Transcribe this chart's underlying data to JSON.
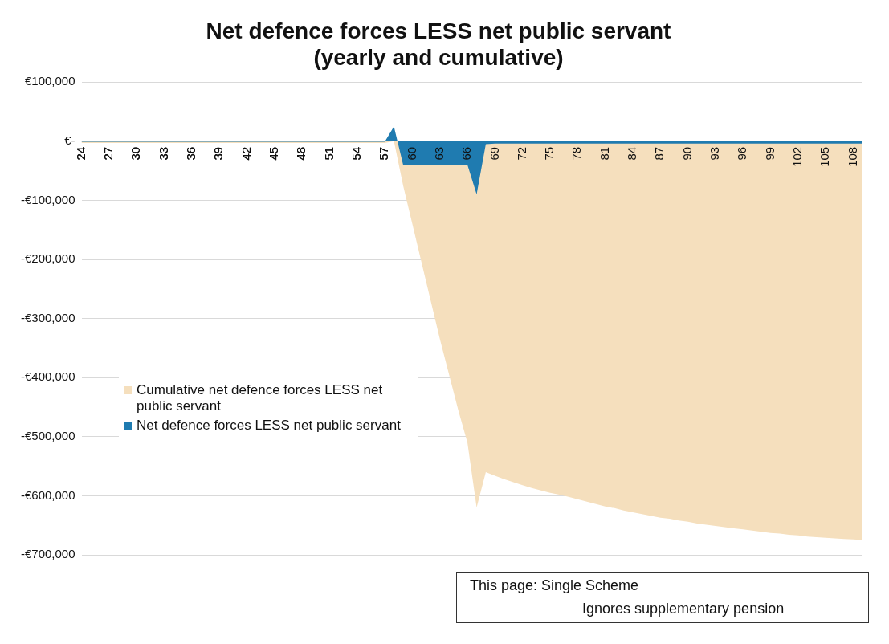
{
  "chart_data": {
    "type": "area",
    "title": "Net defence forces LESS net public servant",
    "subtitle": "(yearly and cumulative)",
    "categories": [
      "24",
      null,
      null,
      "27",
      null,
      null,
      "30",
      null,
      null,
      "33",
      null,
      null,
      "36",
      null,
      null,
      "39",
      null,
      null,
      "42",
      null,
      null,
      "45",
      null,
      null,
      "48",
      null,
      null,
      "51",
      null,
      null,
      "54",
      null,
      null,
      "57",
      null,
      null,
      "60",
      null,
      null,
      "63",
      null,
      null,
      "66",
      null,
      null,
      "69",
      null,
      null,
      "72",
      null,
      null,
      "75",
      null,
      null,
      "78",
      null,
      null,
      "81",
      null,
      null,
      "84",
      null,
      null,
      "87",
      null,
      null,
      "90",
      null,
      null,
      "93",
      null,
      null,
      "96",
      null,
      null,
      "99",
      null,
      null,
      "102",
      null,
      null,
      "105",
      null,
      null,
      "108",
      null
    ],
    "series": [
      {
        "name": "Cumulative net defence forces LESS net public servant",
        "color": "#f5dfbd",
        "values": [
          -3000,
          -3000,
          -3000,
          -3000,
          -3000,
          -3000,
          -3000,
          -3000,
          -3000,
          -3000,
          -3000,
          -3000,
          -3000,
          -3000,
          -3000,
          -3000,
          -3000,
          -3000,
          -3000,
          -3000,
          -3000,
          -3000,
          -3000,
          -3000,
          -3000,
          -3000,
          -3000,
          -3000,
          -3000,
          -3000,
          -3000,
          -3000,
          -3000,
          -3000,
          0,
          -75000,
          -140000,
          -205000,
          -270000,
          -335000,
          -395000,
          -455000,
          -510000,
          -620000,
          -560000,
          -566000,
          -572000,
          -577000,
          -582000,
          -587000,
          -591000,
          -595000,
          -598000,
          -602000,
          -606000,
          -610000,
          -614000,
          -618000,
          -621000,
          -625000,
          -628000,
          -631000,
          -634000,
          -637000,
          -639000,
          -642000,
          -644000,
          -647000,
          -649000,
          -651000,
          -653000,
          -655000,
          -657000,
          -659000,
          -661000,
          -663000,
          -664000,
          -666000,
          -667000,
          -669000,
          -670000,
          -671000,
          -672000,
          -673000,
          -674000,
          -675000
        ]
      },
      {
        "name": "Net defence forces LESS net public servant",
        "color": "#1f7bb0",
        "values": [
          -1000,
          -1000,
          -1000,
          -1000,
          -1000,
          -1000,
          -1000,
          -1000,
          -1000,
          -1000,
          -1000,
          -1000,
          -1000,
          -1000,
          -1000,
          -1000,
          -1000,
          -1000,
          -1000,
          -1000,
          -1000,
          -1000,
          -1000,
          -1000,
          -1000,
          -1000,
          -1000,
          -1000,
          -1000,
          -1000,
          -1000,
          -1000,
          -1000,
          -1000,
          25000,
          -40000,
          -40000,
          -40000,
          -40000,
          -40000,
          -40000,
          -40000,
          -40000,
          -90000,
          -5000,
          -4000,
          -4000,
          -4000,
          -4000,
          -4000,
          -4000,
          -4000,
          -4000,
          -4000,
          -4000,
          -4000,
          -4000,
          -4000,
          -4000,
          -4000,
          -4000,
          -4000,
          -4000,
          -4000,
          -4000,
          -4000,
          -4000,
          -4000,
          -4000,
          -4000,
          -4000,
          -4000,
          -4000,
          -4000,
          -4000,
          -4000,
          -4000,
          -4000,
          -4000,
          -4000,
          -4000,
          -4000,
          -4000,
          -4000,
          -4000,
          -4000
        ]
      }
    ],
    "ylim": [
      -700000,
      100000
    ],
    "yticks": [
      {
        "value": 100000,
        "label": "€100,000"
      },
      {
        "value": 0,
        "label": "€-"
      },
      {
        "value": -100000,
        "label": "-€100,000"
      },
      {
        "value": -200000,
        "label": "-€200,000"
      },
      {
        "value": -300000,
        "label": "-€300,000"
      },
      {
        "value": -400000,
        "label": "-€400,000"
      },
      {
        "value": -500000,
        "label": "-€500,000"
      },
      {
        "value": -600000,
        "label": "-€600,000"
      },
      {
        "value": -700000,
        "label": "-€700,000"
      }
    ],
    "grid": "y",
    "legend": "left",
    "annotations": [
      "This page: Single Scheme",
      "Ignores supplementary pension"
    ]
  }
}
